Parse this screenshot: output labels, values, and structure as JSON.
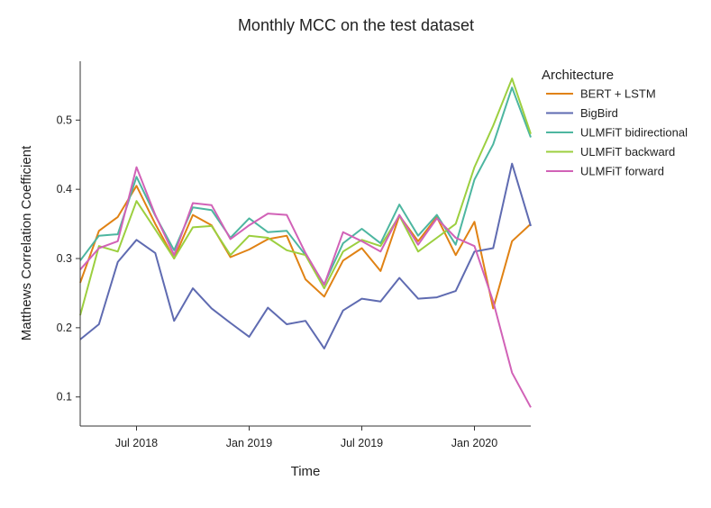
{
  "chart_data": {
    "type": "line",
    "title": "Monthly MCC on the test dataset",
    "xlabel": "Time",
    "ylabel": "Matthews Correlation Coefficient",
    "x": [
      "2018-04",
      "2018-05",
      "2018-06",
      "2018-07",
      "2018-08",
      "2018-09",
      "2018-10",
      "2018-11",
      "2018-12",
      "2019-01",
      "2019-02",
      "2019-03",
      "2019-04",
      "2019-05",
      "2019-06",
      "2019-07",
      "2019-08",
      "2019-09",
      "2019-10",
      "2019-11",
      "2019-12",
      "2020-01",
      "2020-02",
      "2020-03",
      "2020-04"
    ],
    "xlim": [
      "2018-04",
      "2020-04"
    ],
    "ylim": [
      0.058,
      0.585
    ],
    "x_ticks": [
      {
        "value": "2018-07",
        "label": "Jul 2018"
      },
      {
        "value": "2019-01",
        "label": "Jan 2019"
      },
      {
        "value": "2019-07",
        "label": "Jul 2019"
      },
      {
        "value": "2020-01",
        "label": "Jan 2020"
      }
    ],
    "y_ticks": [
      0.1,
      0.2,
      0.3,
      0.4,
      0.5
    ],
    "grid": false,
    "legend": {
      "title": "Architecture",
      "position": "right"
    },
    "series": [
      {
        "name": "BERT + LSTM",
        "color": "#e08214",
        "values": [
          0.265,
          0.34,
          0.36,
          0.405,
          0.35,
          0.3,
          0.363,
          0.348,
          0.302,
          0.313,
          0.328,
          0.333,
          0.27,
          0.245,
          0.297,
          0.315,
          0.282,
          0.362,
          0.325,
          0.36,
          0.305,
          0.353,
          0.228,
          0.325,
          0.35
        ]
      },
      {
        "name": "BigBird",
        "color": "#5f6bb1",
        "values": [
          0.183,
          0.205,
          0.295,
          0.327,
          0.308,
          0.21,
          0.257,
          0.228,
          0.207,
          0.187,
          0.229,
          0.205,
          0.21,
          0.17,
          0.225,
          0.242,
          0.238,
          0.272,
          0.242,
          0.244,
          0.253,
          0.31,
          0.315,
          0.437,
          0.347
        ]
      },
      {
        "name": "ULMFiT bidirectional",
        "color": "#4db6a0",
        "values": [
          0.297,
          0.333,
          0.335,
          0.418,
          0.362,
          0.312,
          0.374,
          0.37,
          0.33,
          0.358,
          0.338,
          0.34,
          0.305,
          0.263,
          0.322,
          0.343,
          0.322,
          0.378,
          0.333,
          0.363,
          0.32,
          0.414,
          0.465,
          0.547,
          0.475
        ]
      },
      {
        "name": "ULMFiT backward",
        "color": "#9ccf3f",
        "values": [
          0.218,
          0.318,
          0.31,
          0.383,
          0.342,
          0.3,
          0.345,
          0.347,
          0.305,
          0.333,
          0.33,
          0.312,
          0.305,
          0.257,
          0.31,
          0.327,
          0.318,
          0.362,
          0.31,
          0.33,
          0.35,
          0.432,
          0.492,
          0.56,
          0.48
        ]
      },
      {
        "name": "ULMFiT forward",
        "color": "#d162b7",
        "values": [
          0.284,
          0.315,
          0.325,
          0.432,
          0.363,
          0.305,
          0.38,
          0.377,
          0.328,
          0.348,
          0.365,
          0.363,
          0.308,
          0.262,
          0.338,
          0.325,
          0.31,
          0.363,
          0.32,
          0.358,
          0.33,
          0.318,
          0.238,
          0.135,
          0.085
        ]
      }
    ]
  }
}
